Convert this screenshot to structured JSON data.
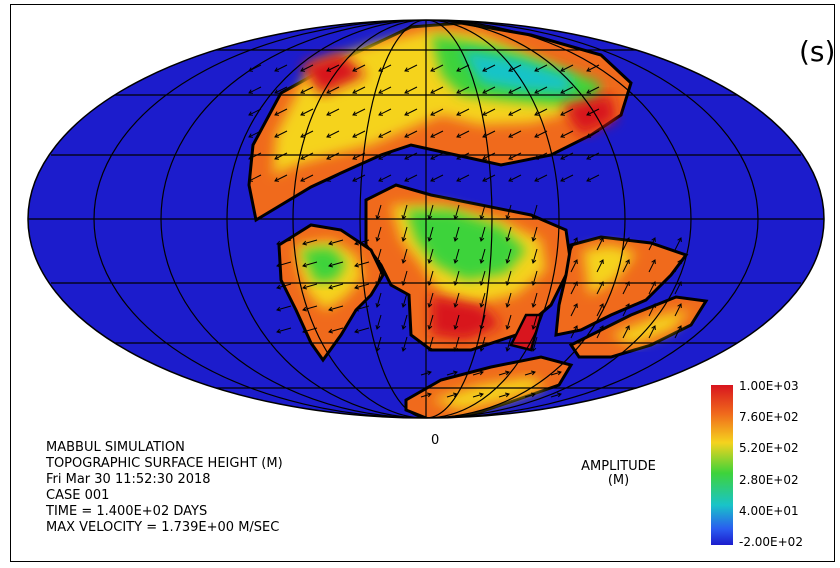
{
  "panel_label": "(s)",
  "zero_label": "0",
  "info": {
    "line1": "MABBUL SIMULATION",
    "line2": "TOPOGRAPHIC SURFACE HEIGHT (M)",
    "line3": "Fri Mar 30 11:52:30 2018",
    "line4": "CASE 001",
    "line5": "TIME  = 1.400E+02 DAYS",
    "line6": "MAX VELOCITY = 1.739E+00 M/SEC"
  },
  "amplitude": {
    "title": "AMPLITUDE",
    "unit": "(M)"
  },
  "colorbar": {
    "ticks": [
      "1.00E+03",
      "7.60E+02",
      "5.20E+02",
      "2.80E+02",
      "4.00E+01",
      "-2.00E+02"
    ],
    "colors": {
      "max": "#d8151e",
      "high": "#f06a1c",
      "mid": "#f5d31e",
      "low": "#3ed33a",
      "lower": "#19c4c8",
      "min": "#1c1ccc"
    }
  },
  "colors": {
    "ocean": "#1c1ccc",
    "graticule": "#000000"
  }
}
